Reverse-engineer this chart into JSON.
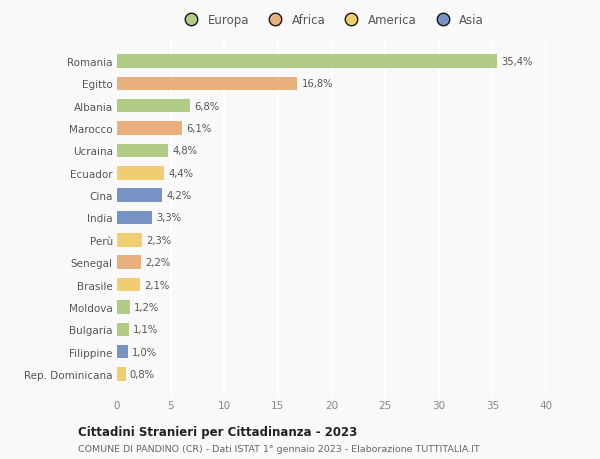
{
  "countries": [
    "Romania",
    "Egitto",
    "Albania",
    "Marocco",
    "Ucraina",
    "Ecuador",
    "Cina",
    "India",
    "Perù",
    "Senegal",
    "Brasile",
    "Moldova",
    "Bulgaria",
    "Filippine",
    "Rep. Dominicana"
  ],
  "values": [
    35.4,
    16.8,
    6.8,
    6.1,
    4.8,
    4.4,
    4.2,
    3.3,
    2.3,
    2.2,
    2.1,
    1.2,
    1.1,
    1.0,
    0.8
  ],
  "labels": [
    "35,4%",
    "16,8%",
    "6,8%",
    "6,1%",
    "4,8%",
    "4,4%",
    "4,2%",
    "3,3%",
    "2,3%",
    "2,2%",
    "2,1%",
    "1,2%",
    "1,1%",
    "1,0%",
    "0,8%"
  ],
  "colors": [
    "#a8c87a",
    "#e8a870",
    "#a8c87a",
    "#e8a870",
    "#a8c87a",
    "#f0ca60",
    "#6888be",
    "#6888be",
    "#f0ca60",
    "#e8a870",
    "#f0ca60",
    "#a8c87a",
    "#a8c87a",
    "#6888be",
    "#f0ca60"
  ],
  "legend_labels": [
    "Europa",
    "Africa",
    "America",
    "Asia"
  ],
  "legend_colors": [
    "#a8c87a",
    "#e8a870",
    "#f0ca60",
    "#6888be"
  ],
  "title": "Cittadini Stranieri per Cittadinanza - 2023",
  "subtitle": "COMUNE DI PANDINO (CR) - Dati ISTAT 1° gennaio 2023 - Elaborazione TUTTITALIA.IT",
  "xlim": [
    0,
    40
  ],
  "xticks": [
    0,
    5,
    10,
    15,
    20,
    25,
    30,
    35,
    40
  ],
  "background_color": "#f9f9f9",
  "grid_color": "#ffffff",
  "bar_height": 0.6
}
